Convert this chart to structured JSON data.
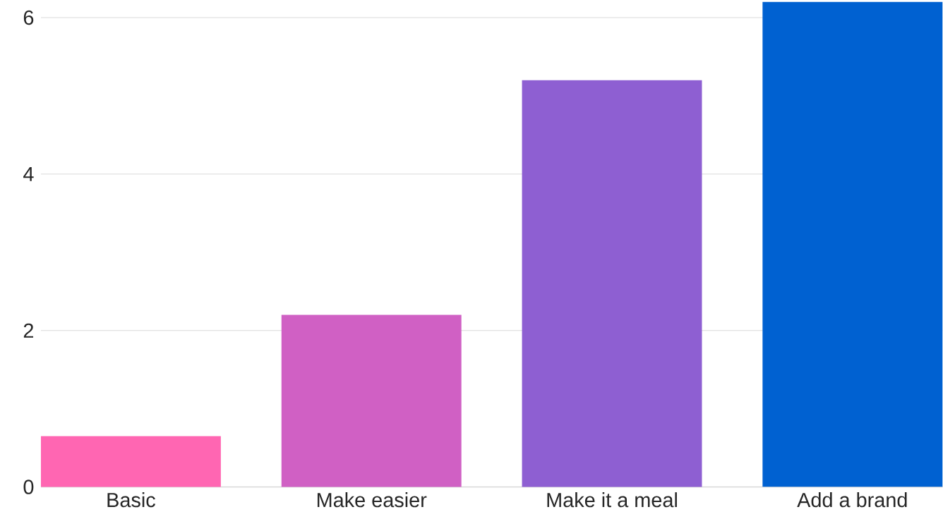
{
  "chart_data": {
    "type": "bar",
    "categories": [
      "Basic",
      "Make easier",
      "Make it a meal",
      "Add a brand"
    ],
    "values": [
      0.65,
      2.2,
      5.2,
      6.2
    ],
    "colors": [
      "#ff66b2",
      "#d060c4",
      "#8e5fd2",
      "#0061d1"
    ],
    "ylim": [
      0,
      6.22
    ],
    "yticks": [
      0,
      2,
      4,
      6
    ],
    "grid": "y"
  }
}
